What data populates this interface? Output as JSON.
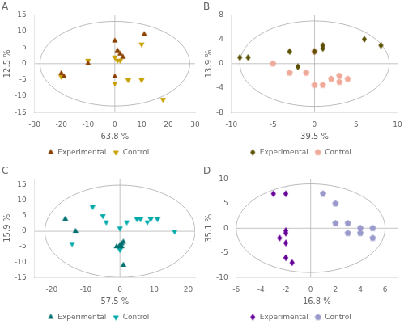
{
  "chart_data": [
    {
      "type": "scatter",
      "title": "A",
      "xlabel": "63.8 %",
      "ylabel": "12.5 %",
      "xlim": [
        -30,
        30
      ],
      "ylim": [
        -15,
        15
      ],
      "xticks": [
        -30,
        -20,
        -10,
        0,
        10,
        20,
        30
      ],
      "yticks": [
        -15,
        -10,
        -5,
        0,
        5,
        10,
        15
      ],
      "grid": false,
      "legend": "bottom",
      "series": [
        {
          "name": "Experimental",
          "color": "#8B4000",
          "marker": "triangle-up",
          "values": [
            [
              -20,
              -3
            ],
            [
              -19,
              -4
            ],
            [
              -10,
              0
            ],
            [
              0,
              7
            ],
            [
              1,
              4
            ],
            [
              2,
              3
            ],
            [
              3,
              2
            ],
            [
              11,
              9
            ],
            [
              0,
              -4
            ]
          ]
        },
        {
          "name": "Control",
          "color": "#C8A000",
          "marker": "triangle-down",
          "values": [
            [
              -20,
              -4
            ],
            [
              -10,
              1
            ],
            [
              0,
              2
            ],
            [
              1,
              1
            ],
            [
              2,
              1
            ],
            [
              10,
              6
            ],
            [
              0,
              -6
            ],
            [
              5,
              -5
            ],
            [
              10,
              -5
            ],
            [
              18,
              -11
            ]
          ]
        }
      ],
      "ellipse": {
        "center": [
          0,
          0
        ],
        "width": 56,
        "height": 26,
        "color": "#bbbbbb"
      },
      "crosshair": {
        "x": 0,
        "y": 0,
        "color": "#aaaaaa"
      }
    },
    {
      "type": "scatter",
      "title": "B",
      "xlabel": "39.5 %",
      "ylabel": "13.9 %",
      "xlim": [
        -10,
        10
      ],
      "ylim": [
        -8,
        8
      ],
      "xticks": [
        -10,
        -5,
        0,
        5,
        10
      ],
      "yticks": [
        -8,
        -4,
        0,
        4,
        8
      ],
      "grid": false,
      "legend": "bottom",
      "series": [
        {
          "name": "Experimental",
          "color": "#5C5000",
          "marker": "diamond",
          "values": [
            [
              -9,
              1
            ],
            [
              -8,
              1
            ],
            [
              -3,
              2
            ],
            [
              -2,
              -0.5
            ],
            [
              0,
              2
            ],
            [
              1,
              3
            ],
            [
              1,
              2.5
            ],
            [
              6,
              4
            ],
            [
              8,
              3
            ]
          ]
        },
        {
          "name": "Control",
          "color": "#F0A898",
          "marker": "pentagon",
          "values": [
            [
              -5,
              0
            ],
            [
              -3,
              -1.5
            ],
            [
              -1,
              -1.5
            ],
            [
              0,
              2
            ],
            [
              0,
              -3.5
            ],
            [
              1,
              -3.5
            ],
            [
              2,
              -2.5
            ],
            [
              3,
              -2
            ],
            [
              3,
              -3
            ],
            [
              4,
              -2.5
            ]
          ]
        }
      ],
      "ellipse": {
        "center": [
          0,
          0
        ],
        "width": 18,
        "height": 14,
        "color": "#bbbbbb"
      },
      "crosshair": {
        "x": 0,
        "y": 0,
        "color": "#aaaaaa"
      }
    },
    {
      "type": "scatter",
      "title": "C",
      "xlabel": "57.5 %",
      "ylabel": "15.9 %",
      "xlim": [
        -25,
        22
      ],
      "ylim": [
        -15,
        17
      ],
      "xticks": [
        -20,
        -10,
        0,
        10,
        20
      ],
      "yticks": [
        -15,
        -10,
        -5,
        0,
        5,
        10,
        15
      ],
      "grid": false,
      "legend": "bottom",
      "series": [
        {
          "name": "Experimental",
          "color": "#007070",
          "marker": "triangle-up",
          "values": [
            [
              -16,
              4
            ],
            [
              -13,
              0
            ],
            [
              -1,
              -5
            ],
            [
              0,
              -5
            ],
            [
              0.5,
              -5
            ],
            [
              0,
              -4.5
            ],
            [
              0.5,
              -4
            ],
            [
              1,
              -3.5
            ],
            [
              1,
              -11
            ]
          ]
        },
        {
          "name": "Control",
          "color": "#00AAAA",
          "marker": "triangle-down",
          "values": [
            [
              -14,
              -4
            ],
            [
              -8,
              8
            ],
            [
              -5,
              5
            ],
            [
              -4,
              3
            ],
            [
              0,
              1
            ],
            [
              2,
              3
            ],
            [
              5,
              4
            ],
            [
              6,
              4
            ],
            [
              8,
              3
            ],
            [
              9,
              4
            ],
            [
              11,
              4
            ],
            [
              16,
              0
            ],
            [
              0,
              -6
            ]
          ]
        }
      ],
      "ellipse": {
        "center": [
          0,
          0
        ],
        "width": 44,
        "height": 30,
        "color": "#bbbbbb"
      },
      "crosshair": {
        "x": 0,
        "y": 0,
        "color": "#aaaaaa"
      }
    },
    {
      "type": "scatter",
      "title": "D",
      "xlabel": "16.8 %",
      "ylabel": "35.1 %",
      "xlim": [
        -6,
        7
      ],
      "ylim": [
        -10,
        10
      ],
      "xticks": [
        -6,
        -4,
        -2,
        0,
        2,
        4,
        6
      ],
      "yticks": [
        -10,
        -5,
        0,
        5,
        10
      ],
      "grid": false,
      "legend": "bottom",
      "series": [
        {
          "name": "Experimental",
          "color": "#660099",
          "marker": "diamond",
          "values": [
            [
              -3,
              7
            ],
            [
              -2,
              7
            ],
            [
              -2,
              -1
            ],
            [
              -2,
              -0.5
            ],
            [
              -2.5,
              -2
            ],
            [
              -2,
              -3
            ],
            [
              -2,
              -6
            ],
            [
              -1.5,
              -7
            ]
          ]
        },
        {
          "name": "Control",
          "color": "#9999CC",
          "marker": "pentagon",
          "values": [
            [
              1,
              7
            ],
            [
              2,
              5
            ],
            [
              2,
              1
            ],
            [
              3,
              1
            ],
            [
              4,
              0
            ],
            [
              5,
              0
            ],
            [
              3,
              -1
            ],
            [
              4,
              -1
            ],
            [
              5,
              -2
            ]
          ]
        }
      ],
      "ellipse": {
        "center": [
          0,
          0
        ],
        "width": 12,
        "height": 18,
        "color": "#bbbbbb"
      },
      "crosshair": {
        "x": 0,
        "y": 0,
        "color": "#aaaaaa"
      }
    }
  ]
}
